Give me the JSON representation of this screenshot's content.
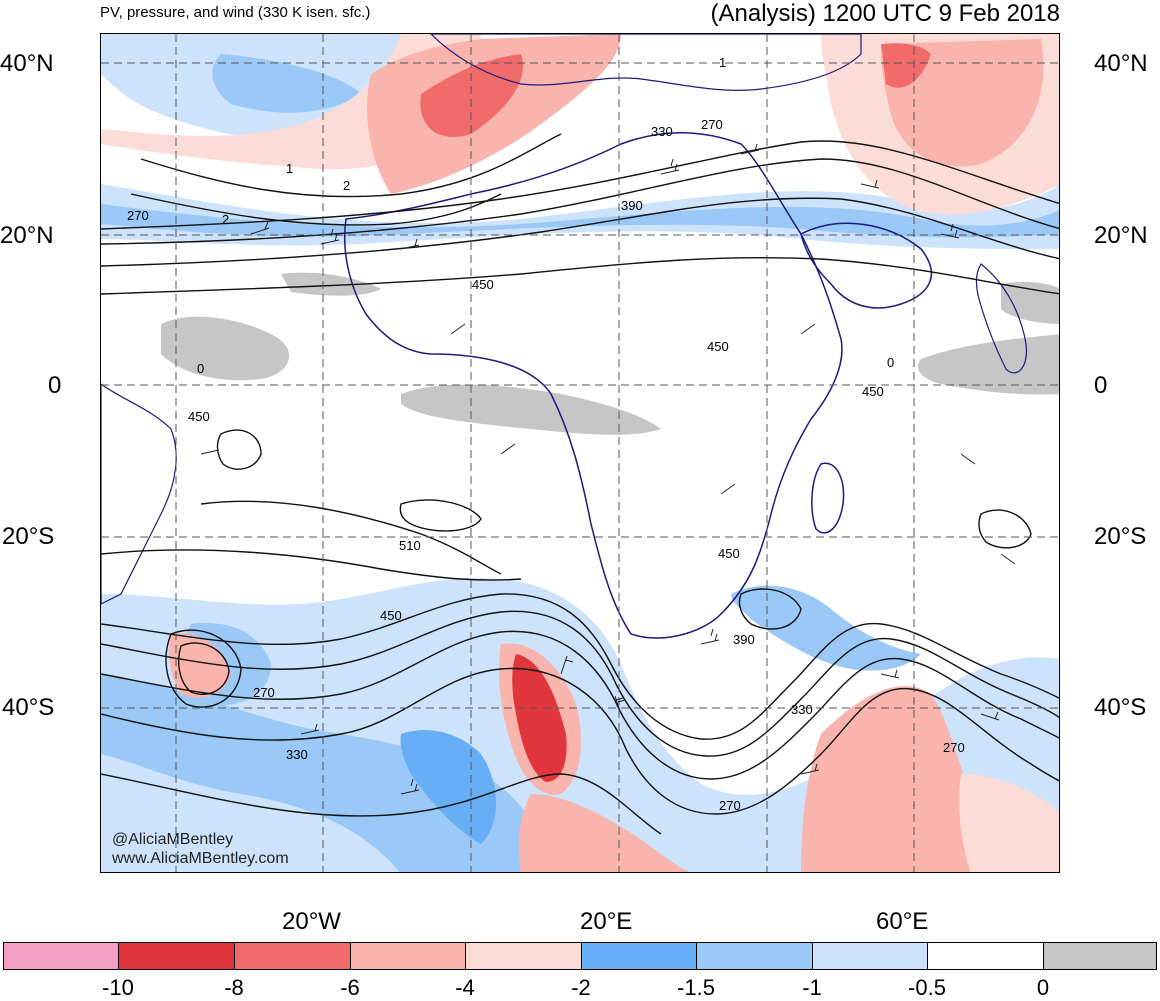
{
  "header": {
    "subtitle": "PV, pressure, and wind (330 K isen. sfc.)",
    "title": "(Analysis) 1200 UTC 9 Feb 2018"
  },
  "axes": {
    "lat_left": [
      "40°N",
      "20°N",
      "0",
      "20°S",
      "40°S"
    ],
    "lat_right": [
      "40°N",
      "20°N",
      "0",
      "20°S",
      "40°S"
    ],
    "lon_bottom": [
      "20°W",
      "20°E",
      "60°E"
    ]
  },
  "contour_labels": [
    "1",
    "2",
    "1",
    "2",
    "270",
    "330",
    "270",
    "390",
    "450",
    "450",
    "0",
    "450",
    "0",
    "450",
    "510",
    "450",
    "450",
    "390",
    "270",
    "330",
    "330",
    "270",
    "270"
  ],
  "credit": {
    "handle": "@AliciaMBentley",
    "site": "www.AliciaMBentley.com"
  },
  "colorbar": {
    "labels": [
      "-10",
      "-8",
      "-6",
      "-4",
      "-2",
      "-1.5",
      "-1",
      "-0.5",
      "0"
    ],
    "colors": [
      "#f59ec4",
      "#e2363f",
      "#f26b6b",
      "#f8b4ad",
      "#fcdcd6",
      "#66aef5",
      "#9ac8f7",
      "#cde3fb",
      "#ffffff",
      "#c6c6c6"
    ]
  },
  "map": {
    "background": "#ffffff",
    "coast_color": "#1a1a80",
    "grid_color": "#555555"
  }
}
